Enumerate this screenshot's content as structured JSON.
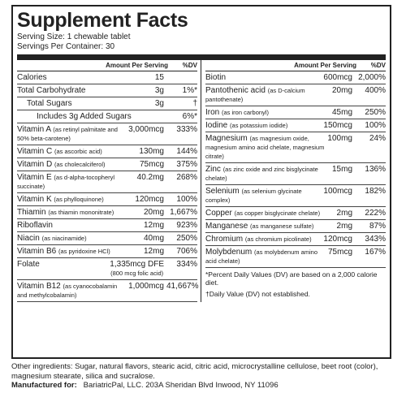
{
  "header": {
    "title": "Supplement Facts",
    "serving_size": "Serving Size: 1 chewable tablet",
    "servings_per_container": "Servings Per Container: 30"
  },
  "table": {
    "column_headers": {
      "amount": "Amount Per Serving",
      "dv": "%DV"
    },
    "left_rows": [
      {
        "name": "Calories",
        "amount": "15",
        "dv": ""
      },
      {
        "name": "Total Carbohydrate",
        "amount": "3g",
        "dv": "1%*"
      },
      {
        "name": "Total Sugars",
        "amount": "3g",
        "dv": "†"
      },
      {
        "name": "Includes 3g Added Sugars",
        "amount": "",
        "dv": "6%*"
      },
      {
        "name": "Vitamin A",
        "note": "(as retinyl palmitate and 50% beta-carotene)",
        "amount": "3,000mcg",
        "dv": "333%"
      },
      {
        "name": "Vitamin C",
        "note": "(as ascorbic acid)",
        "amount": "130mg",
        "dv": "144%"
      },
      {
        "name": "Vitamin D",
        "note": "(as cholecalciferol)",
        "amount": "75mcg",
        "dv": "375%"
      },
      {
        "name": "Vitamin E",
        "note": "(as d-alpha-tocopheryl succinate)",
        "amount": "40.2mg",
        "dv": "268%"
      },
      {
        "name": "Vitamin K",
        "note": "(as phylloquinone)",
        "amount": "120mcg",
        "dv": "100%"
      },
      {
        "name": "Thiamin",
        "note": "(as thiamin mononitrate)",
        "amount": "20mg",
        "dv": "1,667%"
      },
      {
        "name": "Riboflavin",
        "amount": "12mg",
        "dv": "923%"
      },
      {
        "name": "Niacin",
        "note": "(as niacinamide)",
        "amount": "40mg",
        "dv": "250%"
      },
      {
        "name": "Vitamin B6",
        "note": "(as pyridoxine HCl)",
        "amount": "12mg",
        "dv": "706%"
      },
      {
        "name": "Folate",
        "amount": "1,335mcg DFE",
        "amount_note": "(800 mcg folic acid)",
        "dv": "334%"
      },
      {
        "name": "Vitamin B12",
        "note": "(as cyanocobalamin and methylcobalamin)",
        "amount": "1,000mcg",
        "dv": "41,667%"
      }
    ],
    "right_rows": [
      {
        "name": "Biotin",
        "amount": "600mcg",
        "dv": "2,000%"
      },
      {
        "name": "Pantothenic acid",
        "note": "(as D-calcium pantothenate)",
        "amount": "20mg",
        "dv": "400%"
      },
      {
        "name": "Iron",
        "note": "(as iron carbonyl)",
        "amount": "45mg",
        "dv": "250%"
      },
      {
        "name": "Iodine",
        "note": "(as potassium iodide)",
        "amount": "150mcg",
        "dv": "100%"
      },
      {
        "name": "Magnesium",
        "note": "(as magnesium oxide, magnesium amino acid chelate, magnesium citrate)",
        "amount": "100mg",
        "dv": "24%"
      },
      {
        "name": "Zinc",
        "note": "(as zinc oxide and zinc bisglycinate chelate)",
        "amount": "15mg",
        "dv": "136%"
      },
      {
        "name": "Selenium",
        "note": "(as selenium glycinate complex)",
        "amount": "100mcg",
        "dv": "182%"
      },
      {
        "name": "Copper",
        "note": "(as copper bisglycinate chelate)",
        "amount": "2mg",
        "dv": "222%"
      },
      {
        "name": "Manganese",
        "note": "(as manganese sulfate)",
        "amount": "2mg",
        "dv": "87%"
      },
      {
        "name": "Chromium",
        "note": "(as chromium picolinate)",
        "amount": "120mcg",
        "dv": "343%"
      },
      {
        "name": "Molybdenum",
        "note": "(as molybdenum amino acid chelate)",
        "amount": "75mcg",
        "dv": "167%"
      }
    ],
    "footnotes": [
      "*Percent Daily Values (DV) are based on a 2,000 calorie diet.",
      "†Daily Value (DV) not established."
    ]
  },
  "footer": {
    "other_ingredients": "Other ingredients: Sugar, natural flavors, stearic acid, citric acid, microcrystalline cellulose, beet root (color), magnesium stearate, silica and sucralose.",
    "manufactured_label": "Manufactured for:",
    "manufacturer": "BariatricPal, LLC. 203A Sheridan Blvd  Inwood, NY 11096"
  }
}
